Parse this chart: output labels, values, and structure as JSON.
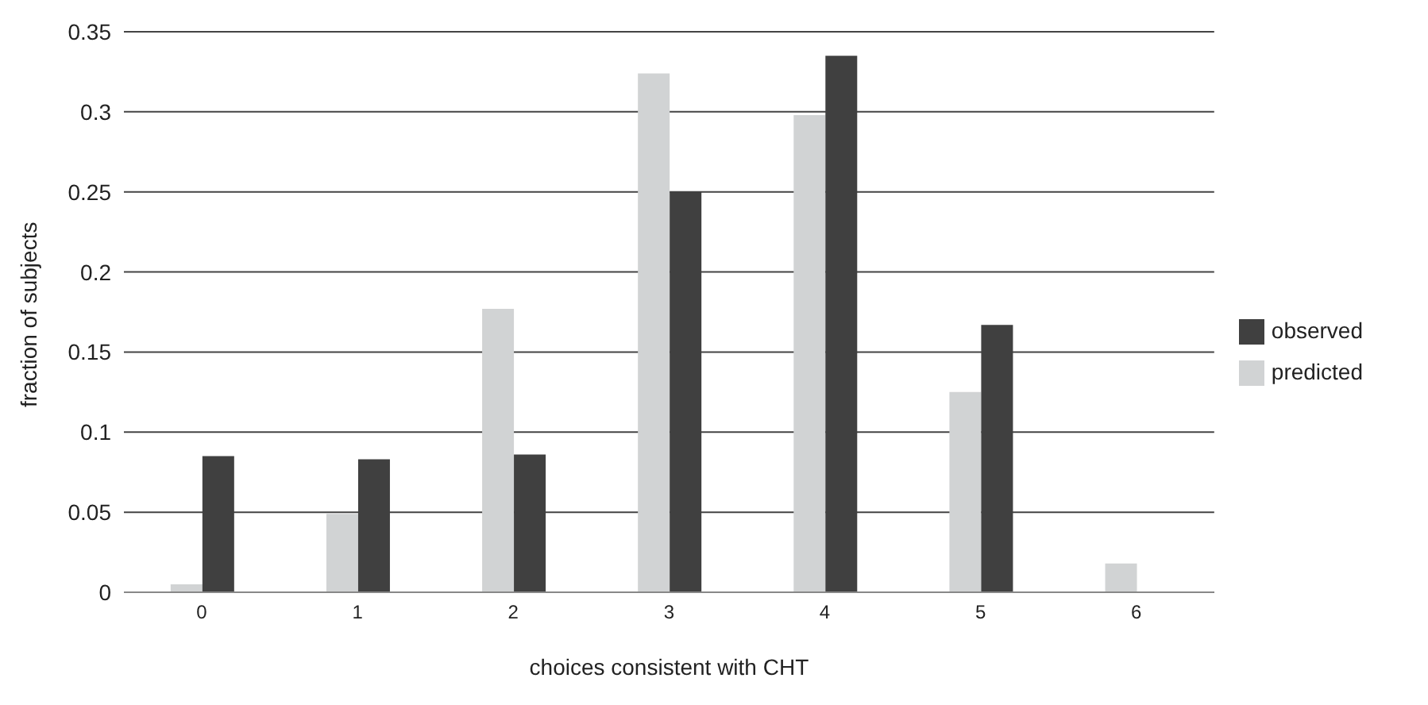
{
  "chart_data": {
    "type": "bar",
    "xlabel": "choices consistent with CHT",
    "ylabel": "fraction of subjects",
    "categories": [
      "0",
      "1",
      "2",
      "3",
      "4",
      "5",
      "6"
    ],
    "series": [
      {
        "name": "predicted",
        "color": "#d1d3d4",
        "values": [
          0.005,
          0.049,
          0.177,
          0.324,
          0.298,
          0.125,
          0.018
        ]
      },
      {
        "name": "observed",
        "color": "#404040",
        "values": [
          0.085,
          0.083,
          0.086,
          0.25,
          0.335,
          0.167,
          0
        ]
      }
    ],
    "ylim": [
      0,
      0.35
    ],
    "yticks": [
      0,
      0.05,
      0.1,
      0.15,
      0.2,
      0.25,
      0.3,
      0.35
    ],
    "grid": "y",
    "legend": "right"
  }
}
